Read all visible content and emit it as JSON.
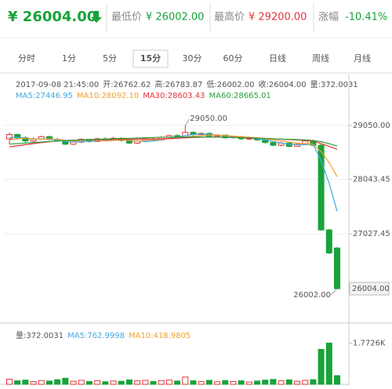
{
  "header": {
    "price": "¥ 26004.00",
    "low_label": "最低价",
    "low": "¥ 26002.00",
    "high_label": "最高价",
    "high": "¥ 29200.00",
    "change_label": "涨幅",
    "change": "-10.41%"
  },
  "tabs": [
    {
      "label": "分时"
    },
    {
      "label": "1分"
    },
    {
      "label": "5分"
    },
    {
      "label": "15分",
      "selected": true
    },
    {
      "label": "30分"
    },
    {
      "label": "60分"
    },
    {
      "label": "日线"
    },
    {
      "label": "周线"
    },
    {
      "label": "月线"
    }
  ],
  "chart_data": [
    {
      "type": "candlestick",
      "info": [
        "2017-09-08 21:45:00",
        "开:26762.62",
        "高:26783.87",
        "低:26002.00",
        "收:26004.00",
        "量:372.0031"
      ],
      "up_color": "#e8333a",
      "down_color": "#18a33a",
      "open": [
        28800,
        28880,
        28820,
        28760,
        28800,
        28840,
        28790,
        28760,
        28700,
        28740,
        28790,
        28750,
        28800,
        28780,
        28810,
        28770,
        28720,
        28760,
        28800,
        28780,
        28830,
        28860,
        28830,
        28920,
        28880,
        28900,
        28850,
        28870,
        28820,
        28840,
        28800,
        28810,
        28780,
        28730,
        28680,
        28720,
        28660,
        28700,
        28760,
        28680,
        27100,
        26762.62
      ],
      "high": [
        28920,
        28900,
        28850,
        28830,
        28860,
        28860,
        28820,
        28780,
        28760,
        28810,
        28800,
        28820,
        28830,
        28840,
        28830,
        28790,
        28780,
        28830,
        28820,
        28850,
        28880,
        28890,
        29050,
        28940,
        28920,
        28920,
        28890,
        28880,
        28860,
        28850,
        28830,
        28830,
        28800,
        28750,
        28740,
        28730,
        28720,
        28770,
        28780,
        28700,
        27120,
        26783.87
      ],
      "low": [
        28700,
        28780,
        28720,
        28740,
        28780,
        28770,
        28740,
        28680,
        28680,
        28720,
        28730,
        28740,
        28760,
        28770,
        28750,
        28700,
        28700,
        28740,
        28760,
        28770,
        28810,
        28810,
        28820,
        28860,
        28860,
        28830,
        28840,
        28800,
        28810,
        28780,
        28780,
        28760,
        28710,
        28660,
        28660,
        28640,
        28650,
        28690,
        28660,
        27080,
        26650,
        26002
      ],
      "close": [
        28880,
        28820,
        28760,
        28800,
        28840,
        28790,
        28760,
        28700,
        28740,
        28790,
        28750,
        28800,
        28780,
        28810,
        28770,
        28720,
        28760,
        28800,
        28780,
        28830,
        28860,
        28830,
        28920,
        28880,
        28900,
        28850,
        28870,
        28820,
        28840,
        28800,
        28810,
        28780,
        28730,
        28680,
        28720,
        28660,
        28700,
        28760,
        28680,
        27100,
        26670,
        26004
      ],
      "series": [
        {
          "name": "MA5:27446.95",
          "color": "#3fa9e0",
          "values": [
            28820,
            28830,
            28810,
            28790,
            28800,
            28790,
            28780,
            28750,
            28740,
            28750,
            28760,
            28760,
            28770,
            28780,
            28790,
            28780,
            28760,
            28750,
            28760,
            28780,
            28810,
            28830,
            28860,
            28880,
            28890,
            28880,
            28870,
            28860,
            28840,
            28830,
            28820,
            28800,
            28780,
            28750,
            28720,
            28700,
            28690,
            28690,
            28700,
            28390,
            27970,
            27446.95
          ]
        },
        {
          "name": "MA10:28092.10",
          "color": "#f0a030",
          "values": [
            28780,
            28800,
            28810,
            28800,
            28790,
            28800,
            28790,
            28770,
            28760,
            28770,
            28780,
            28770,
            28760,
            28770,
            28780,
            28770,
            28760,
            28770,
            28780,
            28790,
            28800,
            28810,
            28830,
            28850,
            28860,
            28870,
            28870,
            28860,
            28850,
            28840,
            28830,
            28820,
            28800,
            28780,
            28760,
            28740,
            28720,
            28710,
            28700,
            28560,
            28360,
            28092.1
          ]
        },
        {
          "name": "MA30:28603.43",
          "color": "#e8333a",
          "values": [
            28650,
            28670,
            28690,
            28710,
            28730,
            28745,
            28760,
            28770,
            28775,
            28780,
            28782,
            28784,
            28786,
            28788,
            28790,
            28792,
            28794,
            28796,
            28798,
            28800,
            28805,
            28810,
            28818,
            28825,
            28830,
            28832,
            28832,
            28830,
            28828,
            28825,
            28820,
            28815,
            28808,
            28800,
            28792,
            28785,
            28778,
            28770,
            28760,
            28710,
            28660,
            28603.43
          ]
        },
        {
          "name": "MA60:28665.01",
          "color": "#2e9e3e",
          "values": [
            28700,
            28710,
            28720,
            28730,
            28740,
            28750,
            28760,
            28770,
            28775,
            28780,
            28785,
            28790,
            28795,
            28800,
            28805,
            28810,
            28815,
            28820,
            28825,
            28830,
            28830,
            28832,
            28835,
            28835,
            28835,
            28832,
            28830,
            28828,
            28825,
            28820,
            28815,
            28810,
            28805,
            28800,
            28795,
            28790,
            28785,
            28780,
            28770,
            28745,
            28710,
            28665.01
          ]
        }
      ],
      "ylim": [
        25390,
        30000
      ],
      "yticks": [
        {
          "value": 29050,
          "label": "29050.00"
        },
        {
          "value": 28043.45,
          "label": "28043.45"
        },
        {
          "value": 27027.45,
          "label": "27027.45"
        }
      ],
      "last_price": {
        "value": 26004,
        "label": "26004.00"
      },
      "annotations": [
        {
          "index": 22,
          "value": 29050,
          "label": "29050.00"
        },
        {
          "index": 41,
          "value": 26002,
          "label": "26002.00"
        }
      ]
    },
    {
      "type": "bar",
      "legend": [
        {
          "name": "量:372.0031",
          "color": "#555555"
        },
        {
          "name": "MA5:762.9998",
          "color": "#3fa9e0"
        },
        {
          "name": "MA10:418.9805",
          "color": "#f0a030"
        }
      ],
      "values": [
        220,
        150,
        180,
        120,
        160,
        140,
        200,
        260,
        130,
        170,
        120,
        150,
        110,
        140,
        130,
        190,
        150,
        170,
        120,
        160,
        180,
        140,
        310,
        150,
        120,
        170,
        110,
        160,
        120,
        150,
        100,
        140,
        180,
        210,
        150,
        190,
        130,
        170,
        200,
        1500,
        1772.6,
        372.0031
      ],
      "ylim": [
        0,
        2190
      ],
      "yticks": [
        {
          "value": 1772.6,
          "label": "1.7726K"
        }
      ]
    }
  ]
}
